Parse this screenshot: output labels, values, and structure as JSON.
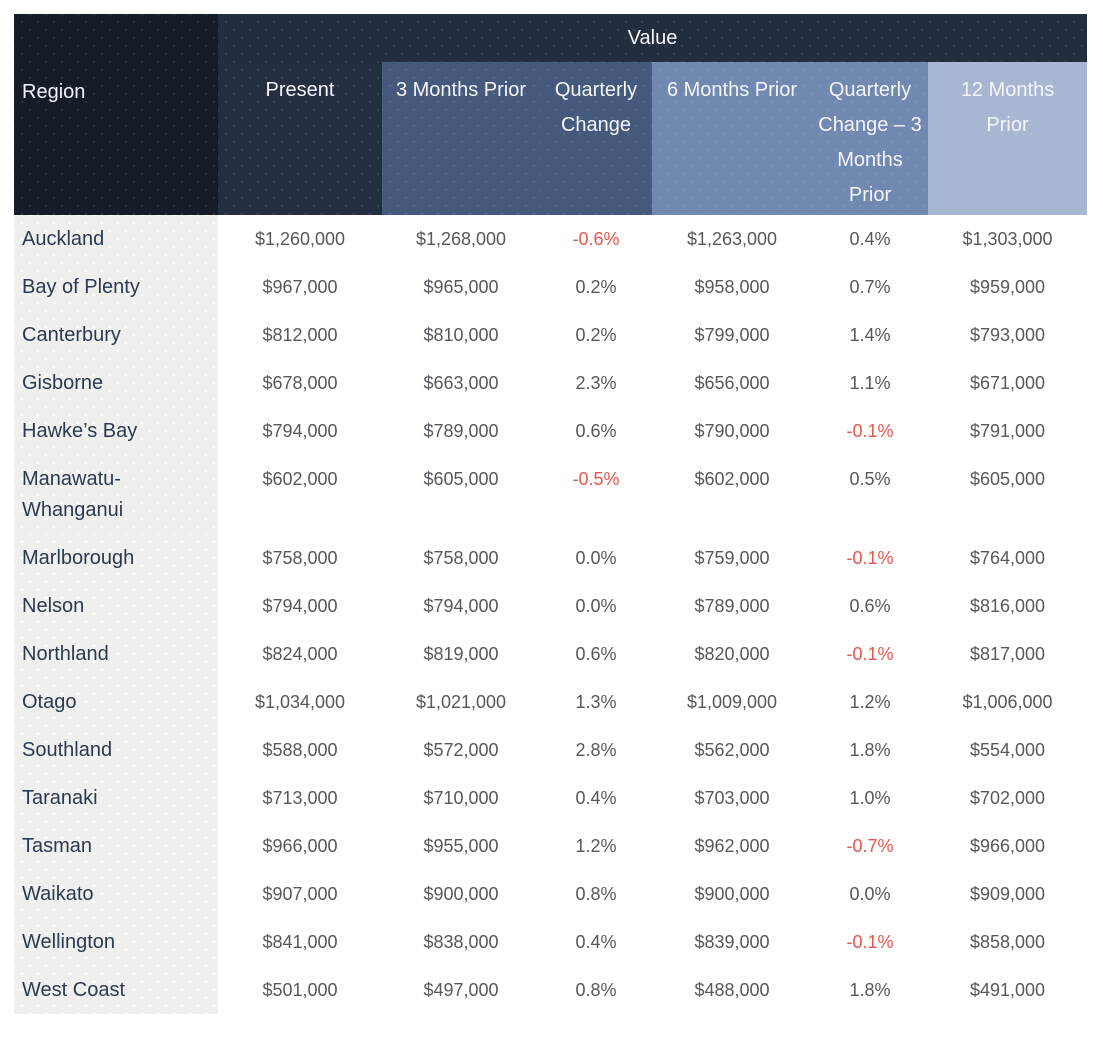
{
  "colors": {
    "region_header_bg": "#151c28",
    "value_bar_bg": "#222e3f",
    "present_header_bg": "#232f41",
    "months3_band_bg": "#45597c",
    "months6_band_bg": "#7189b0",
    "months12_band_bg": "#a8b6d2",
    "header_text": "#f3f5f9",
    "region_cell_bg": "#efefed",
    "region_text": "#2b3a50",
    "data_text": "#55585d",
    "negative_text": "#e8564b"
  },
  "chart_data": {
    "type": "table",
    "title": "Value",
    "region_header": "Region",
    "columns": [
      "Present",
      "3 Months Prior",
      "Quarterly Change",
      "6 Months Prior",
      "Quarterly Change – 3 Months Prior",
      "12 Months Prior"
    ],
    "column_keys": [
      "present",
      "prior3",
      "qchange",
      "prior6",
      "qchange3",
      "prior12"
    ],
    "rows": [
      {
        "region": "Auckland",
        "present": "$1,260,000",
        "prior3": "$1,268,000",
        "qchange": "-0.6%",
        "prior6": "$1,263,000",
        "qchange3": "0.4%",
        "prior12": "$1,303,000"
      },
      {
        "region": "Bay of Plenty",
        "present": "$967,000",
        "prior3": "$965,000",
        "qchange": "0.2%",
        "prior6": "$958,000",
        "qchange3": "0.7%",
        "prior12": "$959,000"
      },
      {
        "region": "Canterbury",
        "present": "$812,000",
        "prior3": "$810,000",
        "qchange": "0.2%",
        "prior6": "$799,000",
        "qchange3": "1.4%",
        "prior12": "$793,000"
      },
      {
        "region": "Gisborne",
        "present": "$678,000",
        "prior3": "$663,000",
        "qchange": "2.3%",
        "prior6": "$656,000",
        "qchange3": "1.1%",
        "prior12": "$671,000"
      },
      {
        "region": "Hawke’s Bay",
        "present": "$794,000",
        "prior3": "$789,000",
        "qchange": "0.6%",
        "prior6": "$790,000",
        "qchange3": "-0.1%",
        "prior12": "$791,000"
      },
      {
        "region": "Manawatu-Whanganui",
        "present": "$602,000",
        "prior3": "$605,000",
        "qchange": "-0.5%",
        "prior6": "$602,000",
        "qchange3": "0.5%",
        "prior12": "$605,000"
      },
      {
        "region": "Marlborough",
        "present": "$758,000",
        "prior3": "$758,000",
        "qchange": "0.0%",
        "prior6": "$759,000",
        "qchange3": "-0.1%",
        "prior12": "$764,000"
      },
      {
        "region": "Nelson",
        "present": "$794,000",
        "prior3": "$794,000",
        "qchange": "0.0%",
        "prior6": "$789,000",
        "qchange3": "0.6%",
        "prior12": "$816,000"
      },
      {
        "region": "Northland",
        "present": "$824,000",
        "prior3": "$819,000",
        "qchange": "0.6%",
        "prior6": "$820,000",
        "qchange3": "-0.1%",
        "prior12": "$817,000"
      },
      {
        "region": "Otago",
        "present": "$1,034,000",
        "prior3": "$1,021,000",
        "qchange": "1.3%",
        "prior6": "$1,009,000",
        "qchange3": "1.2%",
        "prior12": "$1,006,000"
      },
      {
        "region": "Southland",
        "present": "$588,000",
        "prior3": "$572,000",
        "qchange": "2.8%",
        "prior6": "$562,000",
        "qchange3": "1.8%",
        "prior12": "$554,000"
      },
      {
        "region": "Taranaki",
        "present": "$713,000",
        "prior3": "$710,000",
        "qchange": "0.4%",
        "prior6": "$703,000",
        "qchange3": "1.0%",
        "prior12": "$702,000"
      },
      {
        "region": "Tasman",
        "present": "$966,000",
        "prior3": "$955,000",
        "qchange": "1.2%",
        "prior6": "$962,000",
        "qchange3": "-0.7%",
        "prior12": "$966,000"
      },
      {
        "region": "Waikato",
        "present": "$907,000",
        "prior3": "$900,000",
        "qchange": "0.8%",
        "prior6": "$900,000",
        "qchange3": "0.0%",
        "prior12": "$909,000"
      },
      {
        "region": "Wellington",
        "present": "$841,000",
        "prior3": "$838,000",
        "qchange": "0.4%",
        "prior6": "$839,000",
        "qchange3": "-0.1%",
        "prior12": "$858,000"
      },
      {
        "region": "West Coast",
        "present": "$501,000",
        "prior3": "$497,000",
        "qchange": "0.8%",
        "prior6": "$488,000",
        "qchange3": "1.8%",
        "prior12": "$491,000"
      }
    ]
  }
}
